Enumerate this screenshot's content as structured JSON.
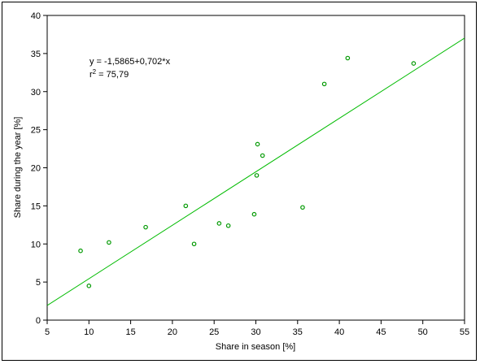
{
  "chart_data": {
    "type": "scatter",
    "title": "",
    "xlabel": "Share in season [%]",
    "ylabel": "Share during the year [%]",
    "xlim": [
      5,
      55
    ],
    "ylim": [
      0,
      40
    ],
    "x_ticks": [
      "5",
      "10",
      "15",
      "20",
      "25",
      "30",
      "35",
      "40",
      "45",
      "50",
      "55"
    ],
    "y_ticks": [
      "0",
      "5",
      "10",
      "15",
      "20",
      "25",
      "30",
      "35",
      "40"
    ],
    "grid": false,
    "points": [
      {
        "x": 9.0,
        "y": 9.1
      },
      {
        "x": 10.0,
        "y": 4.5
      },
      {
        "x": 12.4,
        "y": 10.2
      },
      {
        "x": 16.8,
        "y": 12.2
      },
      {
        "x": 21.6,
        "y": 15.0
      },
      {
        "x": 22.6,
        "y": 10.0
      },
      {
        "x": 25.6,
        "y": 12.7
      },
      {
        "x": 26.7,
        "y": 12.4
      },
      {
        "x": 29.8,
        "y": 13.9
      },
      {
        "x": 30.1,
        "y": 19.0
      },
      {
        "x": 30.2,
        "y": 23.1
      },
      {
        "x": 30.8,
        "y": 21.6
      },
      {
        "x": 35.6,
        "y": 14.8
      },
      {
        "x": 38.2,
        "y": 31.0
      },
      {
        "x": 41.0,
        "y": 34.4
      },
      {
        "x": 48.9,
        "y": 33.7
      }
    ],
    "regression": {
      "intercept": -1.5865,
      "slope": 0.702
    },
    "annotation": {
      "equation": "y =  -1,5865+0,702*x",
      "r2_prefix": "r",
      "r2_sup": "2",
      "r2_value": " = 75,79"
    },
    "marker_color": "#009900",
    "line_color": "#00bb00"
  }
}
